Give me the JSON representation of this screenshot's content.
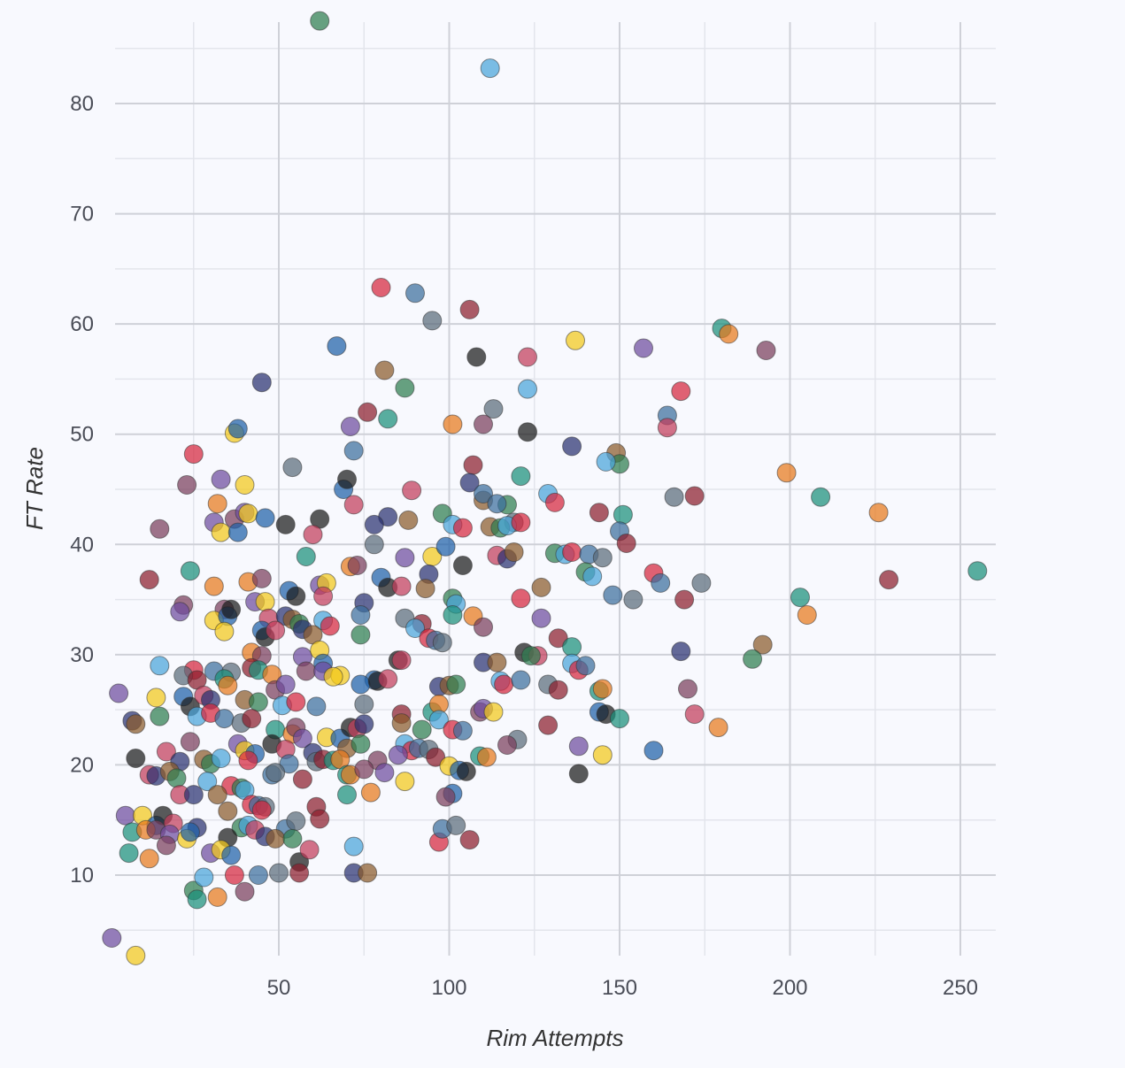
{
  "chart_data": {
    "type": "scatter",
    "xlabel": "Rim Attempts",
    "ylabel": "FT Rate",
    "xlim": [
      0,
      260
    ],
    "ylim": [
      3,
      88
    ],
    "x_ticks": [
      50,
      100,
      150,
      200,
      250
    ],
    "y_ticks": [
      10,
      20,
      30,
      40,
      50,
      60,
      70,
      80
    ],
    "grid": true,
    "palette": [
      "#1f5fa8",
      "#d6263d",
      "#6e4b9e",
      "#2e7d4f",
      "#e8791c",
      "#2a3170",
      "#8c1d2c",
      "#1b1b1b",
      "#3b6e9c",
      "#f2c81a",
      "#4aa3d9",
      "#7a3d5c",
      "#8a5a2b",
      "#1a8f7a",
      "#c23b5a",
      "#5a6b7a"
    ],
    "points": [
      [
        62,
        87.5
      ],
      [
        112,
        83.2
      ],
      [
        80,
        63.3
      ],
      [
        90,
        62.8
      ],
      [
        95,
        60.3
      ],
      [
        106,
        61.3
      ],
      [
        180,
        59.6
      ],
      [
        182,
        59.1
      ],
      [
        193,
        57.6
      ],
      [
        157,
        57.8
      ],
      [
        137,
        58.5
      ],
      [
        67,
        58
      ],
      [
        108,
        57
      ],
      [
        123,
        57
      ],
      [
        45,
        54.7
      ],
      [
        81,
        55.8
      ],
      [
        87,
        54.2
      ],
      [
        123,
        54.1
      ],
      [
        168,
        53.9
      ],
      [
        164,
        51.7
      ],
      [
        113,
        52.3
      ],
      [
        76,
        52
      ],
      [
        82,
        51.4
      ],
      [
        101,
        50.9
      ],
      [
        110,
        50.9
      ],
      [
        71,
        50.7
      ],
      [
        37,
        50.1
      ],
      [
        38,
        50.5
      ],
      [
        123,
        50.2
      ],
      [
        164,
        50.6
      ],
      [
        136,
        48.9
      ],
      [
        149,
        48.3
      ],
      [
        150,
        47.3
      ],
      [
        146,
        47.5
      ],
      [
        25,
        48.2
      ],
      [
        72,
        48.5
      ],
      [
        54,
        47
      ],
      [
        107,
        47.2
      ],
      [
        121,
        46.2
      ],
      [
        199,
        46.5
      ],
      [
        23,
        45.4
      ],
      [
        33,
        45.9
      ],
      [
        40,
        45.4
      ],
      [
        69,
        45
      ],
      [
        70,
        45.9
      ],
      [
        89,
        44.9
      ],
      [
        106,
        45.6
      ],
      [
        110,
        44
      ],
      [
        117,
        43.6
      ],
      [
        129,
        44.6
      ],
      [
        131,
        43.8
      ],
      [
        110,
        44.6
      ],
      [
        166,
        44.3
      ],
      [
        172,
        44.4
      ],
      [
        209,
        44.3
      ],
      [
        32,
        43.7
      ],
      [
        37,
        42.3
      ],
      [
        40,
        42.9
      ],
      [
        41,
        42.8
      ],
      [
        46,
        42.4
      ],
      [
        62,
        42.3
      ],
      [
        72,
        43.6
      ],
      [
        82,
        42.5
      ],
      [
        88,
        42.2
      ],
      [
        98,
        42.8
      ],
      [
        101,
        41.8
      ],
      [
        104,
        41.5
      ],
      [
        114,
        43.7
      ],
      [
        119,
        42
      ],
      [
        144,
        42.9
      ],
      [
        151,
        42.7
      ],
      [
        226,
        42.9
      ],
      [
        15,
        41.4
      ],
      [
        31,
        42
      ],
      [
        33,
        41.1
      ],
      [
        38,
        41.1
      ],
      [
        52,
        41.8
      ],
      [
        60,
        40.9
      ],
      [
        78,
        41.8
      ],
      [
        112,
        41.6
      ],
      [
        115,
        41.5
      ],
      [
        117,
        41.7
      ],
      [
        121,
        42
      ],
      [
        150,
        41.2
      ],
      [
        78,
        40
      ],
      [
        152,
        40.1
      ],
      [
        58,
        38.9
      ],
      [
        71,
        38
      ],
      [
        73,
        38.1
      ],
      [
        87,
        38.8
      ],
      [
        95,
        38.9
      ],
      [
        99,
        39.8
      ],
      [
        104,
        38.1
      ],
      [
        114,
        39
      ],
      [
        117,
        38.7
      ],
      [
        119,
        39.3
      ],
      [
        131,
        39.2
      ],
      [
        134,
        39.1
      ],
      [
        136,
        39.3
      ],
      [
        141,
        39.1
      ],
      [
        145,
        38.8
      ],
      [
        12,
        36.8
      ],
      [
        24,
        37.6
      ],
      [
        41,
        36.6
      ],
      [
        45,
        36.9
      ],
      [
        62,
        36.3
      ],
      [
        64,
        36.5
      ],
      [
        80,
        37
      ],
      [
        82,
        36.1
      ],
      [
        86,
        36.2
      ],
      [
        94,
        37.3
      ],
      [
        127,
        36.1
      ],
      [
        140,
        37.5
      ],
      [
        142,
        37.1
      ],
      [
        160,
        37.4
      ],
      [
        162,
        36.5
      ],
      [
        174,
        36.5
      ],
      [
        229,
        36.8
      ],
      [
        255,
        37.6
      ],
      [
        31,
        36.2
      ],
      [
        34,
        34.1
      ],
      [
        43,
        34.8
      ],
      [
        46,
        34.8
      ],
      [
        53,
        35.8
      ],
      [
        55,
        35.3
      ],
      [
        63,
        35.3
      ],
      [
        75,
        34.7
      ],
      [
        93,
        36
      ],
      [
        101,
        35.1
      ],
      [
        102,
        34.6
      ],
      [
        121,
        35.1
      ],
      [
        148,
        35.4
      ],
      [
        154,
        35
      ],
      [
        169,
        35
      ],
      [
        203,
        35.2
      ],
      [
        205,
        33.6
      ],
      [
        22,
        34.5
      ],
      [
        21,
        33.9
      ],
      [
        31,
        33.1
      ],
      [
        35,
        33.5
      ],
      [
        36,
        34.1
      ],
      [
        47,
        33.3
      ],
      [
        52,
        33.5
      ],
      [
        54,
        33.2
      ],
      [
        56,
        32.8
      ],
      [
        63,
        33.1
      ],
      [
        65,
        32.6
      ],
      [
        74,
        33.6
      ],
      [
        87,
        33.3
      ],
      [
        92,
        32.8
      ],
      [
        101,
        33.6
      ],
      [
        107,
        33.5
      ],
      [
        110,
        32.5
      ],
      [
        127,
        33.3
      ],
      [
        34,
        32.1
      ],
      [
        45,
        32.2
      ],
      [
        46,
        31.6
      ],
      [
        49,
        32.2
      ],
      [
        57,
        32.3
      ],
      [
        60,
        31.8
      ],
      [
        74,
        31.8
      ],
      [
        90,
        32.4
      ],
      [
        94,
        31.5
      ],
      [
        96,
        31.3
      ],
      [
        98,
        31.1
      ],
      [
        132,
        31.5
      ],
      [
        136,
        30.7
      ],
      [
        42,
        30.2
      ],
      [
        45,
        29.9
      ],
      [
        57,
        29.8
      ],
      [
        62,
        30.4
      ],
      [
        63,
        29.2
      ],
      [
        122,
        30.2
      ],
      [
        126,
        29.9
      ],
      [
        168,
        30.3
      ],
      [
        192,
        30.9
      ],
      [
        189,
        29.6
      ],
      [
        15,
        29
      ],
      [
        25,
        28.6
      ],
      [
        31,
        28.5
      ],
      [
        36,
        28.4
      ],
      [
        42,
        28.8
      ],
      [
        44,
        28.6
      ],
      [
        48,
        28.2
      ],
      [
        58,
        28.5
      ],
      [
        63,
        28.5
      ],
      [
        68,
        28.1
      ],
      [
        78,
        27.7
      ],
      [
        85,
        29.5
      ],
      [
        86,
        29.5
      ],
      [
        110,
        29.3
      ],
      [
        114,
        29.3
      ],
      [
        124,
        29.9
      ],
      [
        136,
        29.2
      ],
      [
        138,
        28.6
      ],
      [
        140,
        29
      ],
      [
        22,
        28.1
      ],
      [
        26,
        27.7
      ],
      [
        34,
        27.8
      ],
      [
        35,
        27.2
      ],
      [
        49,
        26.8
      ],
      [
        52,
        27.3
      ],
      [
        66,
        28
      ],
      [
        74,
        27.3
      ],
      [
        79,
        27.6
      ],
      [
        82,
        27.8
      ],
      [
        97,
        27.1
      ],
      [
        100,
        27.2
      ],
      [
        102,
        27.3
      ],
      [
        115,
        27.6
      ],
      [
        116,
        27.3
      ],
      [
        121,
        27.7
      ],
      [
        129,
        27.3
      ],
      [
        132,
        26.8
      ],
      [
        144,
        26.7
      ],
      [
        145,
        26.9
      ],
      [
        170,
        26.9
      ],
      [
        3,
        26.5
      ],
      [
        14,
        26.1
      ],
      [
        22,
        26.2
      ],
      [
        24,
        25.3
      ],
      [
        28,
        26.3
      ],
      [
        30,
        25.9
      ],
      [
        40,
        25.9
      ],
      [
        44,
        25.7
      ],
      [
        51,
        25.4
      ],
      [
        55,
        25.7
      ],
      [
        61,
        25.3
      ],
      [
        75,
        25.5
      ],
      [
        86,
        24.6
      ],
      [
        95,
        24.8
      ],
      [
        97,
        25.5
      ],
      [
        109,
        24.8
      ],
      [
        110,
        25.1
      ],
      [
        113,
        24.8
      ],
      [
        144,
        24.8
      ],
      [
        146,
        24.6
      ],
      [
        172,
        24.6
      ],
      [
        7,
        24
      ],
      [
        8,
        23.7
      ],
      [
        15,
        24.4
      ],
      [
        26,
        24.4
      ],
      [
        30,
        24.7
      ],
      [
        34,
        24.2
      ],
      [
        39,
        23.8
      ],
      [
        42,
        24.2
      ],
      [
        49,
        23.2
      ],
      [
        54,
        22.8
      ],
      [
        55,
        23.4
      ],
      [
        57,
        22.4
      ],
      [
        64,
        22.5
      ],
      [
        68,
        22.4
      ],
      [
        71,
        23.4
      ],
      [
        73,
        23.3
      ],
      [
        75,
        23.7
      ],
      [
        86,
        23.8
      ],
      [
        92,
        23.2
      ],
      [
        97,
        24.1
      ],
      [
        101,
        23.2
      ],
      [
        104,
        23.1
      ],
      [
        120,
        22.3
      ],
      [
        129,
        23.6
      ],
      [
        150,
        24.2
      ],
      [
        179,
        23.4
      ],
      [
        24,
        22.1
      ],
      [
        38,
        21.9
      ],
      [
        40,
        21.3
      ],
      [
        43,
        21
      ],
      [
        48,
        21.9
      ],
      [
        52,
        21.4
      ],
      [
        60,
        21.1
      ],
      [
        70,
        21.5
      ],
      [
        74,
        21.9
      ],
      [
        87,
        21.9
      ],
      [
        89,
        21.3
      ],
      [
        91,
        21.5
      ],
      [
        94,
        21.4
      ],
      [
        96,
        20.7
      ],
      [
        109,
        20.8
      ],
      [
        111,
        20.7
      ],
      [
        117,
        21.8
      ],
      [
        138,
        21.7
      ],
      [
        145,
        20.9
      ],
      [
        160,
        21.3
      ],
      [
        8,
        20.6
      ],
      [
        17,
        21.2
      ],
      [
        21,
        20.3
      ],
      [
        28,
        20.5
      ],
      [
        30,
        20.1
      ],
      [
        33,
        20.6
      ],
      [
        41,
        20.4
      ],
      [
        53,
        20.1
      ],
      [
        61,
        20.3
      ],
      [
        63,
        20.5
      ],
      [
        66,
        20.4
      ],
      [
        68,
        20.5
      ],
      [
        79,
        20.4
      ],
      [
        85,
        20.9
      ],
      [
        100,
        19.9
      ],
      [
        103,
        19.5
      ],
      [
        105,
        19.4
      ],
      [
        12,
        19.1
      ],
      [
        14,
        19
      ],
      [
        18,
        19.4
      ],
      [
        20,
        18.8
      ],
      [
        29,
        18.5
      ],
      [
        36,
        18.1
      ],
      [
        48,
        19.1
      ],
      [
        49,
        19.3
      ],
      [
        57,
        18.7
      ],
      [
        70,
        19.1
      ],
      [
        71,
        19.1
      ],
      [
        75,
        19.6
      ],
      [
        81,
        19.3
      ],
      [
        87,
        18.5
      ],
      [
        101,
        17.4
      ],
      [
        138,
        19.2
      ],
      [
        21,
        17.3
      ],
      [
        25,
        17.3
      ],
      [
        32,
        17.3
      ],
      [
        39,
        17.9
      ],
      [
        40,
        17.7
      ],
      [
        42,
        16.4
      ],
      [
        44,
        16.3
      ],
      [
        46,
        16.2
      ],
      [
        61,
        16.2
      ],
      [
        70,
        17.3
      ],
      [
        77,
        17.5
      ],
      [
        99,
        17.1
      ],
      [
        5,
        15.4
      ],
      [
        10,
        15.4
      ],
      [
        14,
        14.5
      ],
      [
        16,
        15.4
      ],
      [
        19,
        14.7
      ],
      [
        26,
        14.3
      ],
      [
        35,
        15.8
      ],
      [
        39,
        14.3
      ],
      [
        41,
        14.5
      ],
      [
        45,
        15.9
      ],
      [
        52,
        14.2
      ],
      [
        55,
        14.9
      ],
      [
        62,
        15.1
      ],
      [
        7,
        13.9
      ],
      [
        11,
        14.1
      ],
      [
        14,
        14.1
      ],
      [
        18,
        13.7
      ],
      [
        23,
        13.3
      ],
      [
        24,
        13.9
      ],
      [
        35,
        13.4
      ],
      [
        43,
        14.1
      ],
      [
        46,
        13.5
      ],
      [
        49,
        13.3
      ],
      [
        54,
        13.3
      ],
      [
        72,
        12.6
      ],
      [
        97,
        13
      ],
      [
        98,
        14.2
      ],
      [
        102,
        14.5
      ],
      [
        106,
        13.2
      ],
      [
        6,
        12
      ],
      [
        12,
        11.5
      ],
      [
        17,
        12.7
      ],
      [
        30,
        12
      ],
      [
        33,
        12.3
      ],
      [
        36,
        11.8
      ],
      [
        56,
        11.2
      ],
      [
        59,
        12.3
      ],
      [
        72,
        10.2
      ],
      [
        76,
        10.2
      ],
      [
        25,
        8.6
      ],
      [
        28,
        9.8
      ],
      [
        37,
        10
      ],
      [
        44,
        10
      ],
      [
        50,
        10.2
      ],
      [
        56,
        10.2
      ],
      [
        26,
        7.8
      ],
      [
        32,
        8
      ],
      [
        40,
        8.5
      ],
      [
        1,
        4.3
      ],
      [
        8,
        2.7
      ]
    ]
  }
}
